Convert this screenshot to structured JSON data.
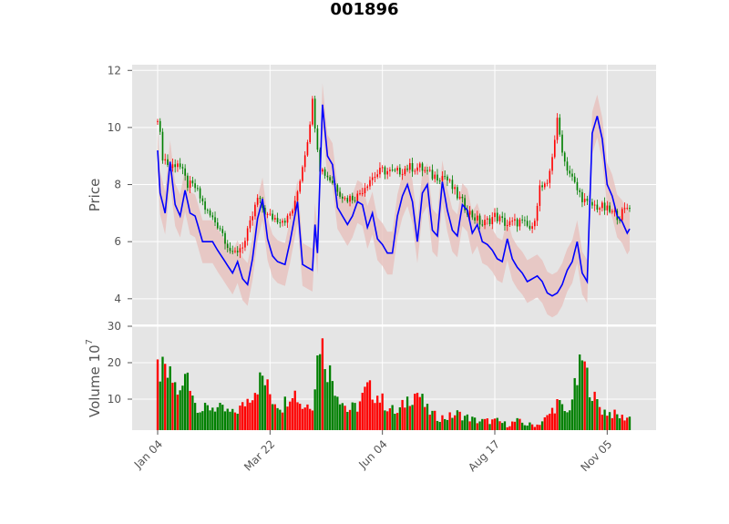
{
  "chart_data": [
    {
      "type": "candlestick",
      "title": "001896",
      "ylabel": "Price",
      "ylim": [
        3.1,
        12.2
      ],
      "yticks": [
        "4",
        "6",
        "8",
        "10",
        "12"
      ],
      "xticks": [
        "Jan 04",
        "Mar 22",
        "Jun 04",
        "Aug 17",
        "Nov 05"
      ],
      "grid": true,
      "up_color": "#ff0000",
      "down_color": "#008000",
      "ma_color": "#0000ff",
      "band_color": "#e8c3c0",
      "anchors": [
        [
          0,
          10.4
        ],
        [
          2,
          9.0
        ],
        [
          5,
          8.6
        ],
        [
          8,
          8.8
        ],
        [
          12,
          8.0
        ],
        [
          15,
          7.9
        ],
        [
          20,
          7.0
        ],
        [
          25,
          6.5
        ],
        [
          30,
          5.5
        ],
        [
          35,
          6.0
        ],
        [
          40,
          7.5
        ],
        [
          44,
          6.9
        ],
        [
          48,
          6.8
        ],
        [
          52,
          6.8
        ],
        [
          55,
          7.3
        ],
        [
          60,
          9.6
        ],
        [
          62,
          10.9
        ],
        [
          65,
          8.6
        ],
        [
          70,
          8.1
        ],
        [
          75,
          7.5
        ],
        [
          80,
          7.6
        ],
        [
          85,
          8.2
        ],
        [
          90,
          8.5
        ],
        [
          95,
          8.4
        ],
        [
          100,
          8.6
        ],
        [
          105,
          8.6
        ],
        [
          110,
          8.3
        ],
        [
          115,
          8.3
        ],
        [
          120,
          7.6
        ],
        [
          125,
          7.0
        ],
        [
          130,
          6.6
        ],
        [
          135,
          6.9
        ],
        [
          140,
          6.6
        ],
        [
          145,
          6.7
        ],
        [
          150,
          6.4
        ],
        [
          153,
          7.9
        ],
        [
          156,
          7.9
        ],
        [
          160,
          10.2
        ],
        [
          163,
          8.8
        ],
        [
          168,
          7.8
        ],
        [
          172,
          7.3
        ],
        [
          178,
          7.2
        ],
        [
          182,
          7.0
        ],
        [
          185,
          6.9
        ],
        [
          189,
          7.3
        ]
      ],
      "ma_anchors": [
        [
          0,
          9.2
        ],
        [
          1,
          7.7
        ],
        [
          3,
          7.0
        ],
        [
          5,
          8.8
        ],
        [
          7,
          7.3
        ],
        [
          9,
          6.9
        ],
        [
          11,
          7.8
        ],
        [
          13,
          7.0
        ],
        [
          15,
          6.9
        ],
        [
          18,
          6.0
        ],
        [
          22,
          6.0
        ],
        [
          24,
          5.7
        ],
        [
          27,
          5.3
        ],
        [
          30,
          4.9
        ],
        [
          32,
          5.3
        ],
        [
          34,
          4.7
        ],
        [
          36,
          4.5
        ],
        [
          38,
          5.4
        ],
        [
          40,
          6.8
        ],
        [
          42,
          7.5
        ],
        [
          44,
          6.1
        ],
        [
          46,
          5.5
        ],
        [
          48,
          5.3
        ],
        [
          51,
          5.2
        ],
        [
          53,
          6.0
        ],
        [
          56,
          7.4
        ],
        [
          58,
          5.2
        ],
        [
          60,
          5.1
        ],
        [
          62,
          5.0
        ],
        [
          63,
          6.6
        ],
        [
          64,
          5.6
        ],
        [
          66,
          10.8
        ],
        [
          68,
          9.0
        ],
        [
          70,
          8.7
        ],
        [
          72,
          7.2
        ],
        [
          74,
          6.9
        ],
        [
          76,
          6.6
        ],
        [
          78,
          6.9
        ],
        [
          80,
          7.4
        ],
        [
          82,
          7.3
        ],
        [
          84,
          6.5
        ],
        [
          86,
          7.0
        ],
        [
          88,
          6.1
        ],
        [
          90,
          5.9
        ],
        [
          92,
          5.6
        ],
        [
          94,
          5.6
        ],
        [
          96,
          6.9
        ],
        [
          98,
          7.6
        ],
        [
          100,
          8.0
        ],
        [
          102,
          7.4
        ],
        [
          104,
          6.0
        ],
        [
          106,
          7.7
        ],
        [
          108,
          8.0
        ],
        [
          110,
          6.4
        ],
        [
          112,
          6.2
        ],
        [
          114,
          8.1
        ],
        [
          116,
          7.1
        ],
        [
          118,
          6.4
        ],
        [
          120,
          6.2
        ],
        [
          122,
          7.3
        ],
        [
          124,
          7.1
        ],
        [
          126,
          6.3
        ],
        [
          128,
          6.6
        ],
        [
          130,
          6.0
        ],
        [
          132,
          5.9
        ],
        [
          134,
          5.7
        ],
        [
          136,
          5.4
        ],
        [
          138,
          5.3
        ],
        [
          140,
          6.1
        ],
        [
          142,
          5.4
        ],
        [
          144,
          5.1
        ],
        [
          146,
          4.9
        ],
        [
          148,
          4.6
        ],
        [
          150,
          4.7
        ],
        [
          152,
          4.8
        ],
        [
          154,
          4.6
        ],
        [
          156,
          4.2
        ],
        [
          158,
          4.1
        ],
        [
          160,
          4.2
        ],
        [
          162,
          4.5
        ],
        [
          164,
          5.0
        ],
        [
          166,
          5.3
        ],
        [
          168,
          6.0
        ],
        [
          170,
          4.9
        ],
        [
          172,
          4.6
        ],
        [
          174,
          9.8
        ],
        [
          176,
          10.4
        ],
        [
          178,
          9.6
        ],
        [
          180,
          8.0
        ],
        [
          182,
          7.6
        ],
        [
          184,
          6.9
        ],
        [
          186,
          6.7
        ],
        [
          188,
          6.3
        ],
        [
          190,
          6.6
        ],
        [
          189,
          6.0
        ]
      ],
      "n": 190
    },
    {
      "type": "bar",
      "ylabel": "Volume  10^7",
      "ylim": [
        1.5,
        30
      ],
      "yticks": [
        "10",
        "20",
        "30"
      ],
      "up_color": "#ff0000",
      "down_color": "#008000",
      "anchors": [
        [
          0,
          18
        ],
        [
          3,
          17
        ],
        [
          6,
          15
        ],
        [
          9,
          11
        ],
        [
          12,
          18
        ],
        [
          15,
          9
        ],
        [
          18,
          7
        ],
        [
          22,
          8
        ],
        [
          26,
          7
        ],
        [
          30,
          6
        ],
        [
          34,
          8
        ],
        [
          38,
          12
        ],
        [
          42,
          16
        ],
        [
          46,
          10
        ],
        [
          50,
          8
        ],
        [
          54,
          13
        ],
        [
          58,
          8
        ],
        [
          62,
          9
        ],
        [
          65,
          27
        ],
        [
          68,
          19
        ],
        [
          72,
          12
        ],
        [
          76,
          7
        ],
        [
          80,
          8
        ],
        [
          84,
          13
        ],
        [
          88,
          11
        ],
        [
          92,
          8
        ],
        [
          96,
          6
        ],
        [
          100,
          10
        ],
        [
          104,
          12
        ],
        [
          108,
          7
        ],
        [
          112,
          5
        ],
        [
          116,
          5
        ],
        [
          120,
          6
        ],
        [
          124,
          5
        ],
        [
          128,
          4
        ],
        [
          132,
          4
        ],
        [
          136,
          4
        ],
        [
          140,
          3
        ],
        [
          144,
          4
        ],
        [
          148,
          3
        ],
        [
          152,
          3
        ],
        [
          156,
          5
        ],
        [
          160,
          9
        ],
        [
          164,
          6
        ],
        [
          168,
          15
        ],
        [
          170,
          21
        ],
        [
          172,
          16
        ],
        [
          175,
          10
        ],
        [
          178,
          7
        ],
        [
          182,
          6
        ],
        [
          186,
          5
        ],
        [
          189,
          5
        ]
      ],
      "n": 190
    }
  ]
}
